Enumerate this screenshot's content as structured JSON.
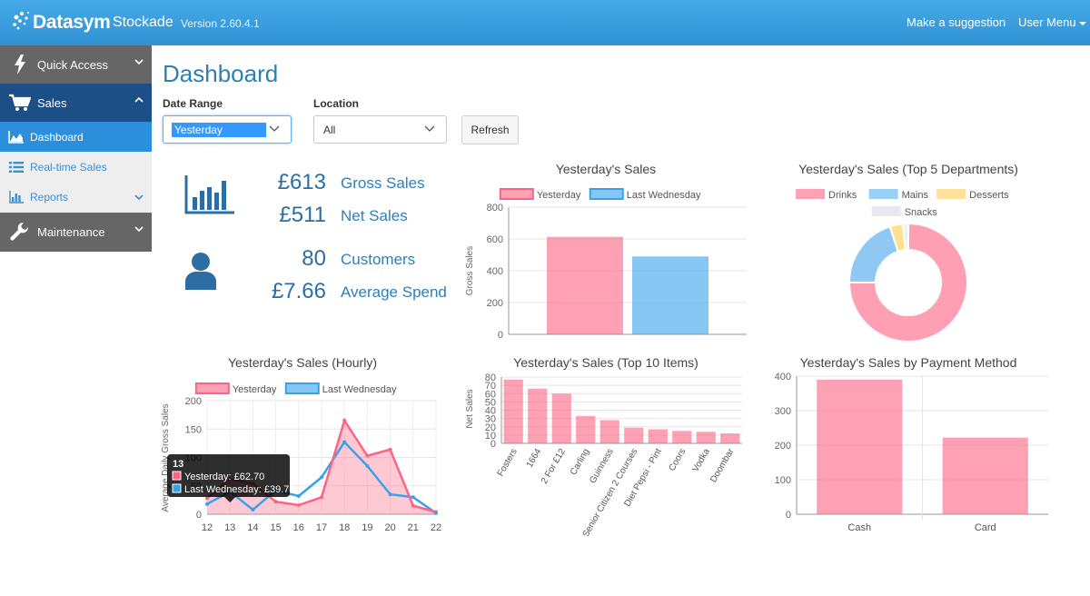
{
  "header": {
    "brand": "Datasym",
    "app_name": "Stockade",
    "version": "Version 2.60.4.1",
    "suggestion_link": "Make a suggestion",
    "user_menu": "User Menu"
  },
  "sidebar": {
    "quick_access": "Quick Access",
    "sales": "Sales",
    "dashboard": "Dashboard",
    "realtime_sales": "Real-time Sales",
    "reports": "Reports",
    "maintenance": "Maintenance"
  },
  "page": {
    "title": "Dashboard",
    "date_range_label": "Date Range",
    "date_range_value": "Yesterday",
    "location_label": "Location",
    "location_value": "All",
    "refresh": "Refresh"
  },
  "stats": {
    "gross_sales_value": "£613",
    "gross_sales_label": "Gross Sales",
    "net_sales_value": "£511",
    "net_sales_label": "Net Sales",
    "customers_value": "80",
    "customers_label": "Customers",
    "avg_spend_value": "£7.66",
    "avg_spend_label": "Average Spend"
  },
  "colors": {
    "pink": "#ff6384",
    "blue": "#36a2eb",
    "yellow": "#ffce56",
    "grey": "#e7e9ed",
    "accent": "#2e7fb8"
  },
  "chart_data": [
    {
      "type": "bar",
      "title": "Yesterday's Sales",
      "ylabel": "Gross Sales",
      "ylim": [
        0,
        800
      ],
      "yticks": [
        0,
        200,
        400,
        600,
        800
      ],
      "series": [
        {
          "name": "Yesterday",
          "values": [
            613
          ]
        },
        {
          "name": "Last Wednesday",
          "values": [
            490
          ]
        }
      ],
      "legend": "top"
    },
    {
      "type": "pie",
      "title": "Yesterday's Sales (Top 5 Departments)",
      "labels": [
        "Drinks",
        "Mains",
        "Desserts",
        "Snacks"
      ],
      "values": [
        460,
        122,
        22,
        9
      ],
      "legend": "top"
    },
    {
      "type": "line",
      "title": "Yesterday's Sales (Hourly)",
      "ylabel": "Average Daily Gross Sales",
      "x": [
        12,
        13,
        14,
        15,
        16,
        17,
        18,
        19,
        20,
        21,
        22
      ],
      "ylim": [
        0,
        200
      ],
      "yticks": [
        0,
        50,
        100,
        150,
        200
      ],
      "series": [
        {
          "name": "Yesterday",
          "values": [
            28,
            62.7,
            54,
            22,
            16,
            30,
            165,
            103,
            114,
            15,
            4
          ]
        },
        {
          "name": "Last Wednesday",
          "values": [
            18,
            39.75,
            8,
            42,
            32,
            65,
            127,
            85,
            35,
            30,
            2
          ]
        }
      ],
      "legend": "top",
      "tooltip": {
        "title": "13",
        "lines": [
          "Yesterday: £62.70",
          "Last Wednesday: £39.75"
        ]
      }
    },
    {
      "type": "bar",
      "title": "Yesterday's Sales (Top 10 Items)",
      "ylabel": "Net Sales",
      "categories": [
        "Fosters",
        "1664",
        "2 For £12",
        "Carling",
        "Guinness",
        "Senior Citizen 2 Courses",
        "Diet Pepsi - Pint",
        "Coors",
        "Vodka",
        "Doombar"
      ],
      "values": [
        77,
        66,
        60,
        33,
        28,
        19,
        17,
        15,
        14,
        12
      ],
      "ylim": [
        0,
        80
      ],
      "yticks": [
        0,
        10,
        20,
        30,
        40,
        50,
        60,
        70,
        80
      ]
    },
    {
      "type": "bar",
      "title": "Yesterday's Sales by Payment Method",
      "categories": [
        "Cash",
        "Card"
      ],
      "values": [
        390,
        222
      ],
      "ylim": [
        0,
        400
      ],
      "yticks": [
        0,
        100,
        200,
        300,
        400
      ]
    }
  ]
}
